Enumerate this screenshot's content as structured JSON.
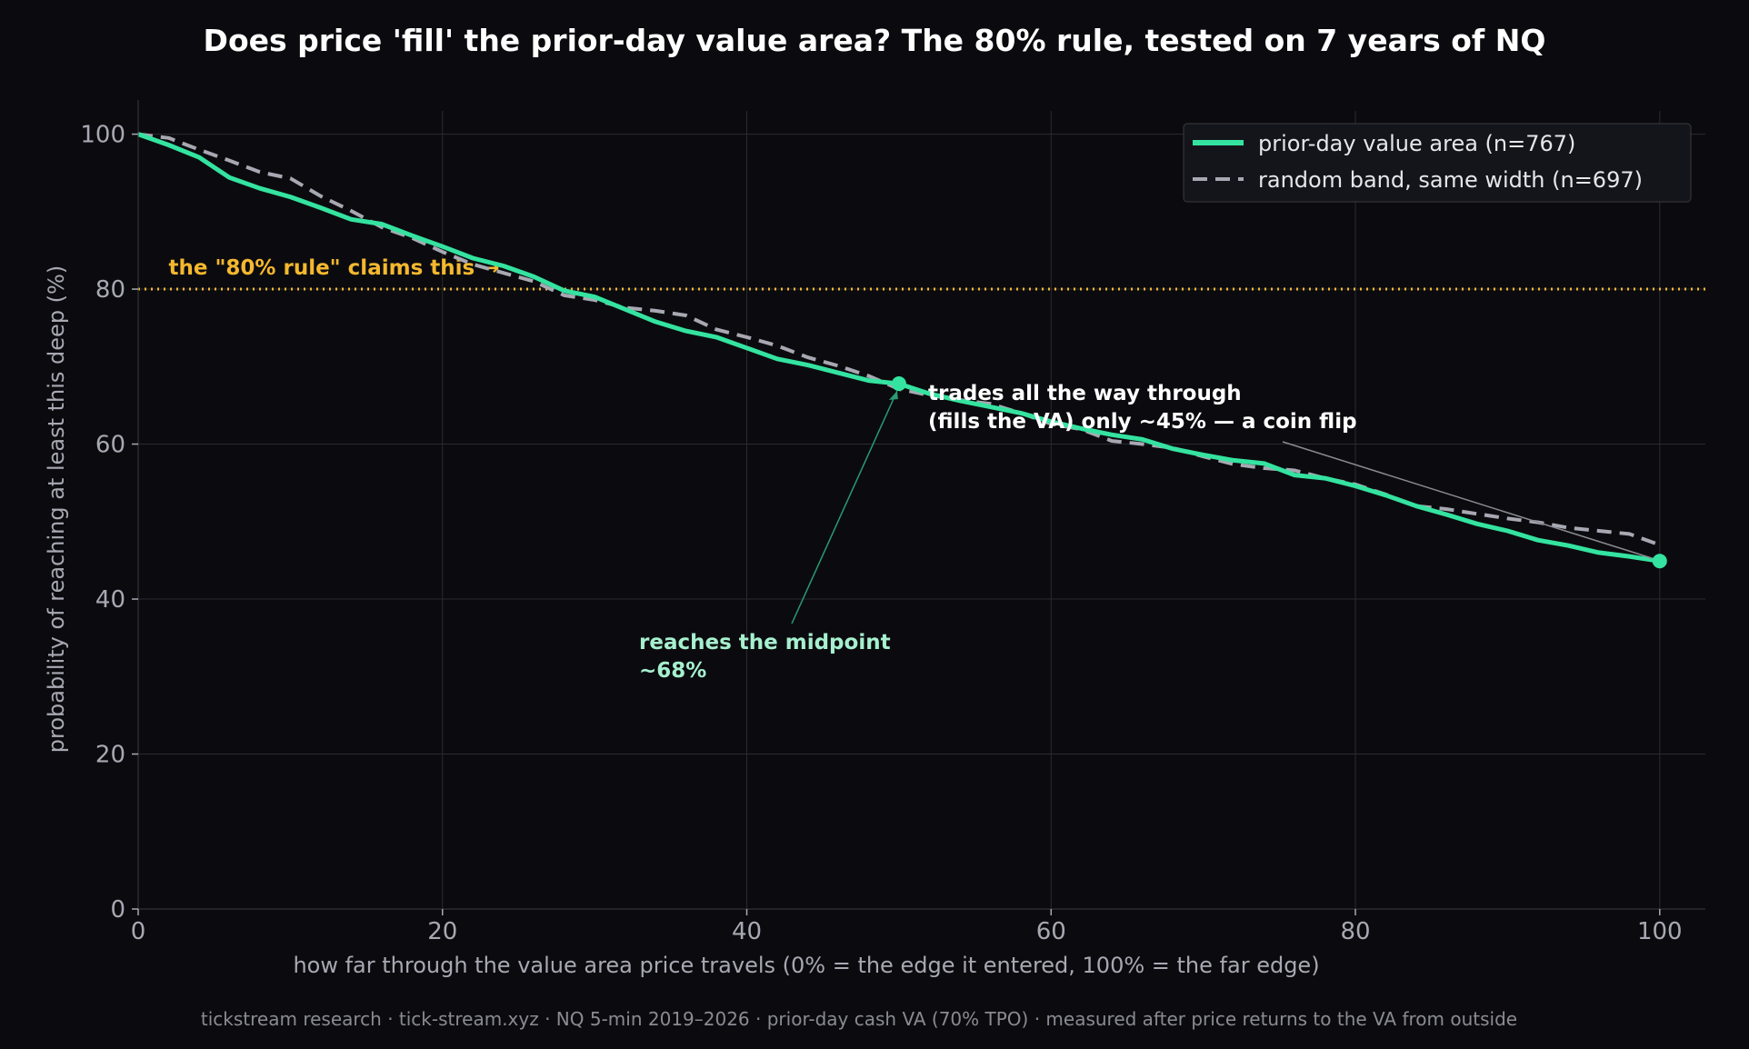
{
  "title": "Does price 'fill' the prior-day value area? The 80% rule, tested on 7 years of NQ",
  "footer": "tickstream research · tick-stream.xyz · NQ 5-min 2019–2026 · prior-day cash VA (70% TPO) · measured after price returns to the VA from outside",
  "colors": {
    "background": "#0b0b0f",
    "value_area": "#34e3a0",
    "random_band": "#a8a8b3",
    "rule_line": "#f5b82e",
    "grid": "#2a2a30",
    "axis_text": "#a8a8b3",
    "annotation_white": "#ffffff",
    "annotation_green": "#a6f0cf"
  },
  "chart_data": {
    "type": "line",
    "xlabel": "how far through the value area price travels  (0% = the edge it entered,  100% = the far edge)",
    "ylabel": "probability of reaching at least this deep  (%)",
    "xlim": [
      0,
      103
    ],
    "ylim": [
      0,
      103
    ],
    "xticks": [
      "0",
      "20",
      "40",
      "60",
      "80",
      "100"
    ],
    "yticks": [
      "0",
      "20",
      "40",
      "60",
      "80",
      "100"
    ],
    "grid": true,
    "legend_position": "top-right",
    "x": [
      0,
      2,
      4,
      6,
      8,
      10,
      12,
      14,
      16,
      18,
      20,
      22,
      24,
      26,
      28,
      30,
      32,
      34,
      36,
      38,
      40,
      42,
      44,
      46,
      48,
      50,
      52,
      54,
      56,
      58,
      60,
      62,
      64,
      66,
      68,
      70,
      72,
      74,
      76,
      78,
      80,
      82,
      84,
      86,
      88,
      90,
      92,
      94,
      96,
      98,
      100
    ],
    "series": [
      {
        "name": "prior-day value area  (n=767)",
        "style": "solid",
        "values": [
          100,
          98.6,
          97.0,
          94.4,
          93.0,
          91.9,
          90.5,
          89.0,
          88.4,
          86.9,
          85.5,
          84.0,
          83.0,
          81.6,
          79.8,
          79.0,
          77.4,
          75.8,
          74.6,
          73.8,
          72.4,
          71.0,
          70.2,
          69.2,
          68.2,
          67.8,
          66.5,
          65.6,
          64.8,
          64.0,
          62.9,
          62.0,
          61.2,
          60.6,
          59.4,
          58.6,
          57.9,
          57.5,
          56.0,
          55.6,
          54.6,
          53.4,
          52.0,
          50.9,
          49.7,
          48.8,
          47.6,
          46.9,
          46.0,
          45.5,
          44.9
        ]
      },
      {
        "name": "random band, same width  (n=697)",
        "style": "dashed",
        "values": [
          100,
          99.5,
          98.0,
          96.6,
          95.1,
          94.3,
          92.0,
          90.1,
          88.0,
          86.6,
          84.8,
          83.2,
          82.1,
          81.0,
          79.2,
          78.6,
          77.6,
          77.2,
          76.6,
          74.8,
          73.8,
          72.7,
          71.2,
          70.1,
          68.8,
          67.1,
          66.3,
          65.7,
          65.2,
          64.0,
          62.6,
          61.9,
          60.4,
          60.0,
          59.5,
          58.4,
          57.4,
          56.9,
          56.6,
          55.6,
          54.8,
          53.5,
          52.0,
          51.6,
          51.0,
          50.4,
          49.9,
          49.2,
          48.8,
          48.4,
          47.0
        ]
      }
    ],
    "reference_line": {
      "y": 80,
      "label": "the \"80% rule\" claims this →"
    },
    "highlight_points": [
      {
        "x": 50,
        "y": 67.8,
        "label_lines": [
          "reaches the midpoint",
          "~68%"
        ]
      },
      {
        "x": 100,
        "y": 44.9,
        "label_lines": [
          "trades all the way through",
          "(fills the VA) only ~45%  —  a coin flip"
        ]
      }
    ]
  }
}
